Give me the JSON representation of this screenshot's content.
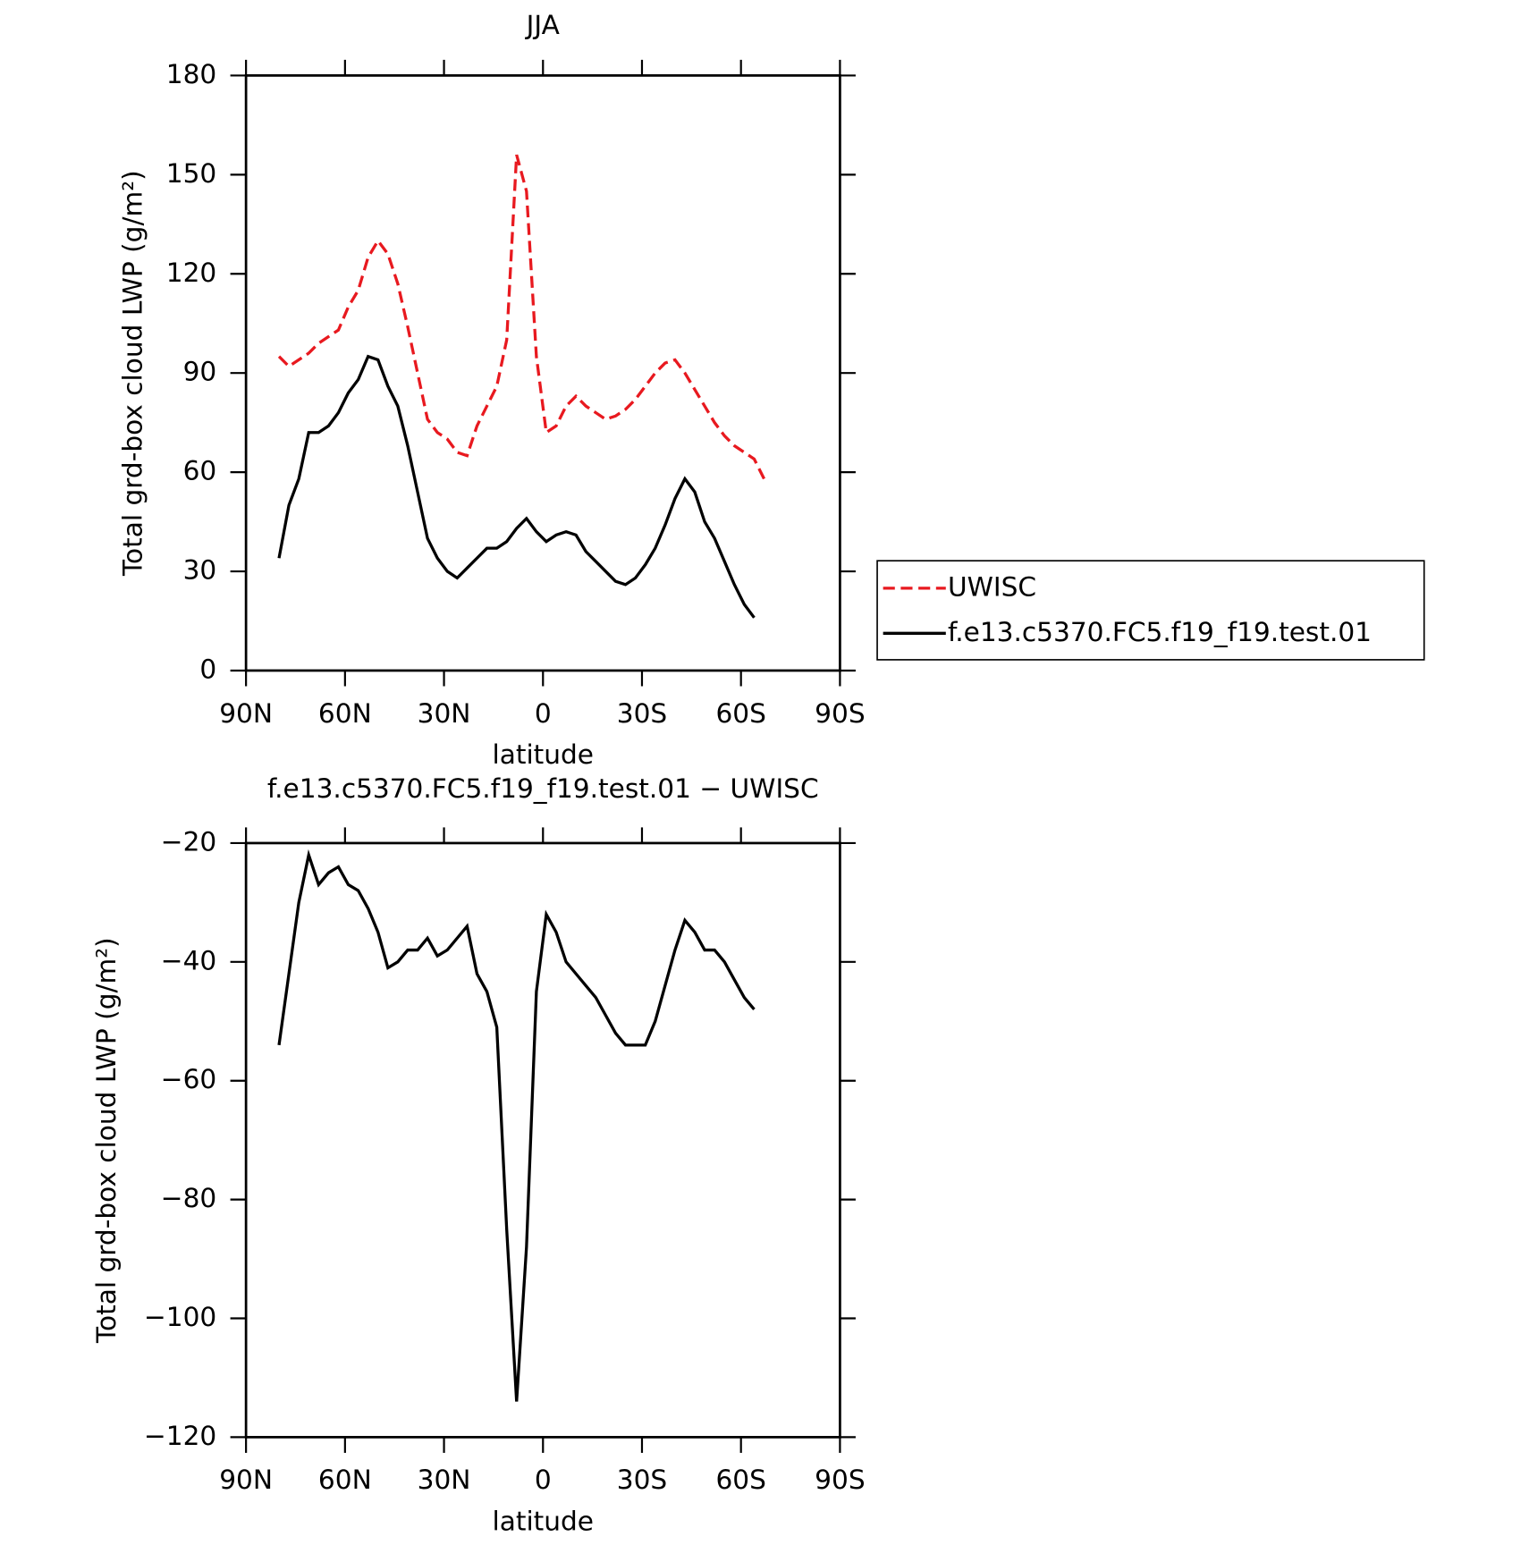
{
  "chart_data": [
    {
      "type": "line",
      "title": "JJA",
      "xlabel": "latitude",
      "ylabel": "Total grd-box cloud LWP (g/m²)",
      "x": [
        80,
        77,
        74,
        71,
        68,
        65,
        62,
        59,
        56,
        53,
        50,
        47,
        44,
        41,
        38,
        35,
        32,
        29,
        26,
        23,
        20,
        17,
        14,
        11,
        8,
        5,
        2,
        -1,
        -4,
        -7,
        -10,
        -13,
        -16,
        -19,
        -22,
        -25,
        -28,
        -31,
        -34,
        -37,
        -40,
        -43,
        -46,
        -49,
        -52,
        -55,
        -58,
        -61,
        -64,
        -67
      ],
      "series": [
        {
          "name": "UWISC",
          "color": "#e8191f",
          "dash": true,
          "values": [
            95,
            92,
            94,
            96,
            99,
            101,
            103,
            110,
            115,
            125,
            130,
            126,
            117,
            104,
            90,
            76,
            72,
            70,
            66,
            65,
            74,
            80,
            86,
            100,
            156,
            145,
            95,
            72,
            74,
            80,
            83,
            80,
            78,
            76,
            77,
            79,
            82,
            86,
            90,
            93,
            94,
            90,
            85,
            80,
            75,
            71,
            68,
            66,
            64,
            58
          ]
        },
        {
          "name": "f.e13.c5370.FC5.f19_f19.test.01",
          "color": "#000000",
          "dash": false,
          "values": [
            34,
            50,
            58,
            72,
            72,
            74,
            78,
            84,
            88,
            95,
            94,
            86,
            80,
            68,
            54,
            40,
            34,
            30,
            28,
            31,
            34,
            37,
            37,
            39,
            43,
            46,
            42,
            39,
            41,
            42,
            41,
            36,
            33,
            30,
            27,
            26,
            28,
            32,
            37,
            44,
            52,
            58,
            54,
            45,
            40,
            33,
            26,
            20,
            16,
            null
          ]
        }
      ],
      "xlim": [
        90,
        -90
      ],
      "xticks": [
        {
          "value": 90,
          "label": "90N"
        },
        {
          "value": 60,
          "label": "60N"
        },
        {
          "value": 30,
          "label": "30N"
        },
        0,
        {
          "value": -30,
          "label": "30S"
        },
        {
          "value": -60,
          "label": "60S"
        },
        {
          "value": -90,
          "label": "90S"
        }
      ],
      "ylim": [
        0,
        180
      ],
      "yticks": [
        0,
        30,
        60,
        90,
        120,
        150,
        180
      ],
      "legend": "right"
    },
    {
      "type": "line",
      "title": "f.e13.c5370.FC5.f19_f19.test.01 − UWISC",
      "xlabel": "latitude",
      "ylabel": "Total grd-box cloud LWP (g/m²)",
      "x": [
        80,
        77,
        74,
        71,
        68,
        65,
        62,
        59,
        56,
        53,
        50,
        47,
        44,
        41,
        38,
        35,
        32,
        29,
        26,
        23,
        20,
        17,
        14,
        11,
        8,
        5,
        2,
        -1,
        -4,
        -7,
        -10,
        -13,
        -16,
        -19,
        -22,
        -25,
        -28,
        -31,
        -34,
        -37,
        -40,
        -43,
        -46,
        -49,
        -52,
        -55,
        -58,
        -61,
        -64
      ],
      "series": [
        {
          "color": "#000000",
          "dash": false,
          "values": [
            -54,
            -42,
            -30,
            -22,
            -27,
            -25,
            -24,
            -27,
            -28,
            -31,
            -35,
            -41,
            -40,
            -38,
            -38,
            -36,
            -39,
            -38,
            -36,
            -34,
            -42,
            -45,
            -51,
            -85,
            -114,
            -88,
            -45,
            -32,
            -35,
            -40,
            -42,
            -44,
            -46,
            -49,
            -52,
            -54,
            -54,
            -54,
            -50,
            -44,
            -38,
            -33,
            -35,
            -38,
            -38,
            -40,
            -43,
            -46,
            -48
          ]
        }
      ],
      "xlim": [
        90,
        -90
      ],
      "xticks": [
        {
          "value": 90,
          "label": "90N"
        },
        {
          "value": 60,
          "label": "60N"
        },
        {
          "value": 30,
          "label": "30N"
        },
        0,
        {
          "value": -30,
          "label": "30S"
        },
        {
          "value": -60,
          "label": "60S"
        },
        {
          "value": -90,
          "label": "90S"
        }
      ],
      "ylim": [
        -120,
        -20
      ],
      "yticks": [
        {
          "value": -120,
          "label": "−120"
        },
        {
          "value": -100,
          "label": "−100"
        },
        {
          "value": -80,
          "label": "−80"
        },
        {
          "value": -60,
          "label": "−60"
        },
        {
          "value": -40,
          "label": "−40"
        },
        {
          "value": -20,
          "label": "−20"
        }
      ]
    }
  ]
}
